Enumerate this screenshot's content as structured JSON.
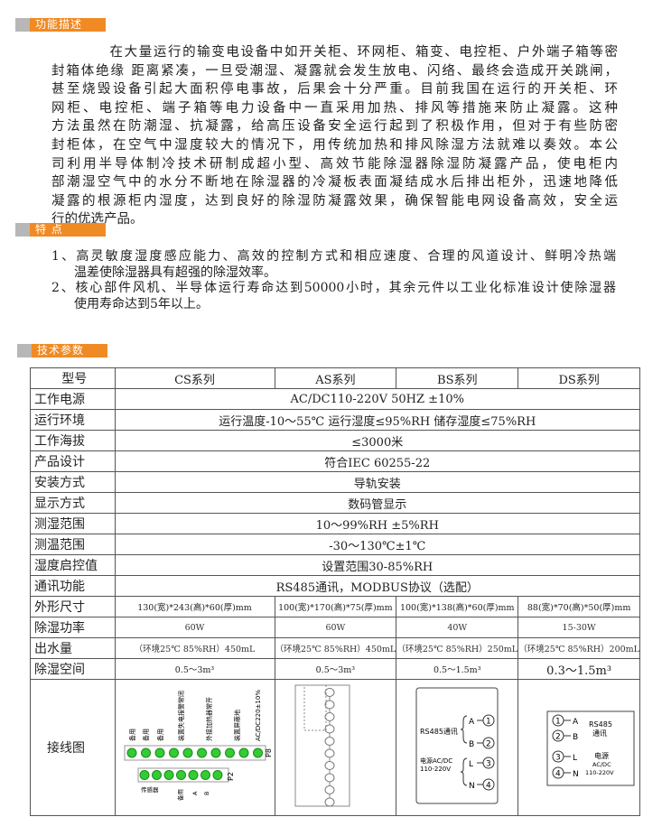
{
  "sections": {
    "function_title": "功能描述",
    "features_title": "特  点",
    "specs_title": "技术参数"
  },
  "description_lines": [
    "　　　　在大量运行的输变电设备中如开关柜、环网柜、箱变、电控柜、户外端子箱等密",
    "封箱体绝缘  距离紧凑，一旦受潮湿、凝露就会发生放电、闪络、最终会造成开关跳闸，",
    "甚至烧毁设备引起大面积停电事故，后果会十分严重。目前我国在运行的开关柜、环",
    "网柜、电控柜、端子箱等电力设备中一直采用加热、排风等措施来防止凝露。这种",
    "方法虽然在防潮湿、抗凝露，给高压设备安全运行起到了积极作用，但对于有些防密",
    "封柜体，在空气中湿度较大的情况下，用传统加热和排风除湿方法就难以奏效。本公",
    "司利用半导体制冷技术研制成超小型、高效节能除湿器除湿防凝露产品，使电柜内",
    "部潮湿空气中的水分不断地在除湿器的冷凝板表面凝结成水后排出柜外，迅速地降低",
    "凝露的根源柜内湿度，达到良好的除湿防凝露效果，确保智能电网设备高效，安全运",
    "行的优选产品。"
  ],
  "features_lines": [
    "1、高灵敏度湿度感应能力、高效的控制方式和相应速度、合理的风道设计、鲜明冷热端",
    "温差使除湿器具有超强的除湿效率。",
    "2、核心部件风机、半导体运行寿命达到50000小时，其余元件以工业化标准设计使除湿器",
    "使用寿命达到5年以上。"
  ],
  "table": {
    "header": [
      "型号",
      "CS系列",
      "AS系列",
      "BS系列",
      "DS系列"
    ],
    "merged_rows": [
      [
        "工作电源",
        "AC/DC110-220V 50HZ ±10%"
      ],
      [
        "运行环境",
        "运行温度-10～55℃  运行湿度≤95%RH 储存湿度≤75%RH"
      ],
      [
        "工作海拔",
        "≤3000米"
      ],
      [
        "产品设计",
        "符合IEC 60255-22"
      ],
      [
        "安装方式",
        "导轨安装"
      ],
      [
        "显示方式",
        "数码管显示"
      ],
      [
        "测湿范围",
        "10～99%RH ±5%RH"
      ],
      [
        "测温范围",
        "-30～130℃±1℃"
      ],
      [
        "湿度启控值",
        "设置范围30-85%RH"
      ],
      [
        "通讯功能",
        "RS485通讯，MODBUS协议（选配）"
      ]
    ],
    "split_rows": [
      [
        "外形尺寸",
        "130(宽)*243(高)*60(厚)mm",
        "100(宽)*170(高)*75(厚)mm",
        "100(宽)*138(高)*60(厚)mm",
        "88(宽)*70(高)*50(厚)mm"
      ],
      [
        "除湿功率",
        "60W",
        "60W",
        "40W",
        "15-30W"
      ],
      [
        "出水量",
        "（环境25℃ 85%RH）450mL",
        "（环境25℃ 85%RH）450mL",
        "（环境25℃ 85%RH）250mL",
        "（环境25℃ 85%RH）200mL"
      ],
      [
        "除湿空间",
        "0.5～3m³",
        "0.5～3m³",
        "0.5～1.5m³",
        "0.3～1.5m³"
      ]
    ],
    "wiring_label": "接线图"
  },
  "wiring": {
    "cs": {
      "p8_labels": [
        "备用",
        "备用",
        "备用",
        "装置失电报警常闭",
        "外接加热器常开",
        "装置屏蔽地",
        "AC/DC220±10%"
      ],
      "p8_name": "P8",
      "p2_name": "P2",
      "p2_labels": [
        "传感器",
        "备用",
        "A",
        "B"
      ],
      "pins_p8": [
        "1",
        "2",
        "3",
        "4",
        "5",
        "6",
        "7",
        "8",
        "9",
        "10"
      ],
      "pins_p2": [
        "1",
        "2",
        "3",
        "4",
        "5",
        "6",
        "7"
      ]
    },
    "bs": {
      "rs485": "RS485通讯",
      "power1": "电源AC/DC",
      "power2": "110-220V",
      "terms": [
        "A",
        "B",
        "L",
        "N"
      ],
      "nums": [
        "1",
        "2",
        "3",
        "4"
      ]
    },
    "ds": {
      "rs485a": "RS485",
      "rs485b": "通讯",
      "power": "电源",
      "power2": "AC/DC",
      "power3": "110-220V",
      "terms": [
        "A",
        "B",
        "L",
        "N"
      ],
      "nums": [
        "1",
        "2",
        "3",
        "4"
      ]
    }
  },
  "colors": {
    "accent": "#f08a24",
    "bar_gray": "#b7b7b7",
    "pin_green": "#33cc33"
  }
}
